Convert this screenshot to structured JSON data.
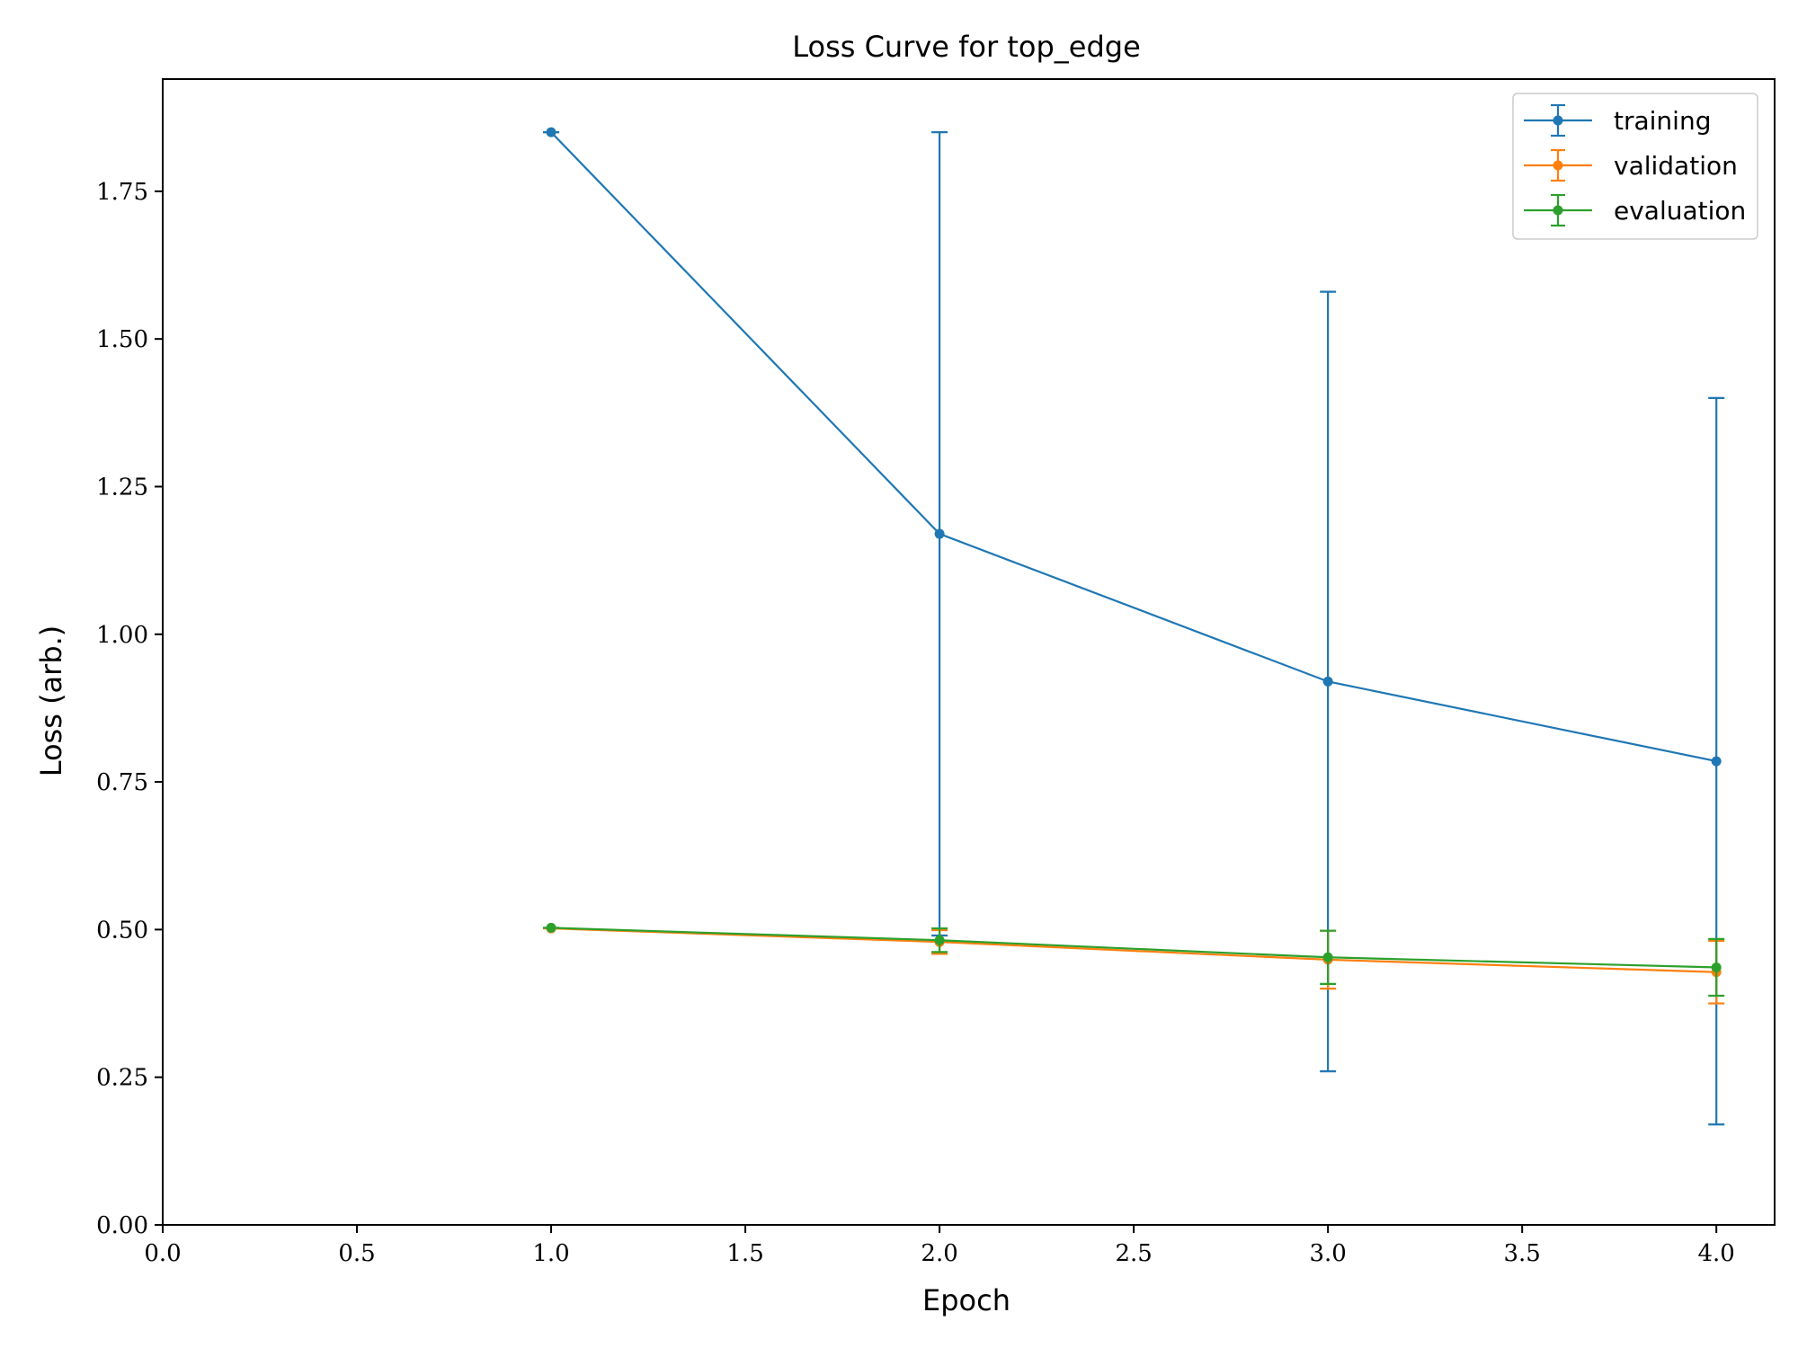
{
  "chart_data": {
    "type": "line",
    "title": "Loss Curve for top_edge",
    "xlabel": "Epoch",
    "ylabel": "Loss (arb.)",
    "xlim": [
      0.0,
      4.15
    ],
    "ylim": [
      0.0,
      1.94
    ],
    "x_ticks": [
      "0.0",
      "0.5",
      "1.0",
      "1.5",
      "2.0",
      "2.5",
      "3.0",
      "3.5",
      "4.0"
    ],
    "y_ticks": [
      "0.00",
      "0.25",
      "0.50",
      "0.75",
      "1.00",
      "1.25",
      "1.50",
      "1.75"
    ],
    "grid": false,
    "legend_position": "top-right",
    "series": [
      {
        "name": "training",
        "color": "#1f77b4",
        "points": [
          {
            "x": 1.0,
            "y": 1.85,
            "err_low": 1.85,
            "err_high": 1.85
          },
          {
            "x": 2.0,
            "y": 1.17,
            "err_low": 0.49,
            "err_high": 1.85
          },
          {
            "x": 3.0,
            "y": 0.92,
            "err_low": 0.26,
            "err_high": 1.58
          },
          {
            "x": 4.0,
            "y": 0.785,
            "err_low": 0.17,
            "err_high": 1.4
          }
        ]
      },
      {
        "name": "validation",
        "color": "#ff7f0e",
        "points": [
          {
            "x": 1.0,
            "y": 0.502,
            "err_low": 0.502,
            "err_high": 0.502
          },
          {
            "x": 2.0,
            "y": 0.479,
            "err_low": 0.459,
            "err_high": 0.499
          },
          {
            "x": 3.0,
            "y": 0.449,
            "err_low": 0.4,
            "err_high": 0.498
          },
          {
            "x": 4.0,
            "y": 0.428,
            "err_low": 0.375,
            "err_high": 0.481
          }
        ]
      },
      {
        "name": "evaluation",
        "color": "#2ca02c",
        "points": [
          {
            "x": 1.0,
            "y": 0.503,
            "err_low": 0.503,
            "err_high": 0.503
          },
          {
            "x": 2.0,
            "y": 0.482,
            "err_low": 0.462,
            "err_high": 0.502
          },
          {
            "x": 3.0,
            "y": 0.453,
            "err_low": 0.408,
            "err_high": 0.498
          },
          {
            "x": 4.0,
            "y": 0.436,
            "err_low": 0.388,
            "err_high": 0.484
          }
        ]
      }
    ]
  }
}
